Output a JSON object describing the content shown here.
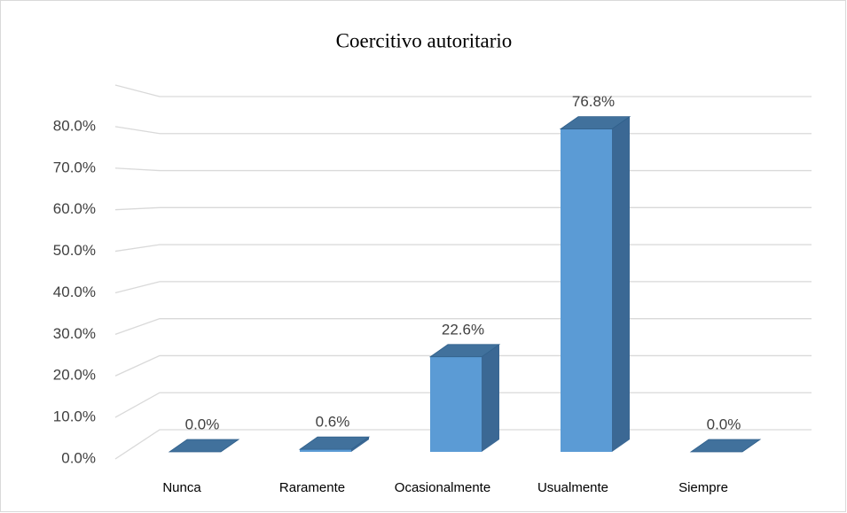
{
  "chart_data": {
    "type": "bar3d",
    "title": "Coercitivo autoritario",
    "categories": [
      "Nunca",
      "Raramente",
      "Ocasionalmente",
      "Usualmente",
      "Siempre"
    ],
    "values": [
      0,
      0.6,
      22.6,
      76.8,
      0
    ],
    "value_labels": [
      "0.0%",
      "0.6%",
      "22.6%",
      "76.8%",
      "0.0%"
    ],
    "color": "#5b9bd5",
    "ylim": [
      0,
      90
    ],
    "yticks": [
      {
        "value": 0,
        "label": "0.0%"
      },
      {
        "value": 10,
        "label": "10.0%"
      },
      {
        "value": 20,
        "label": "20.0%"
      },
      {
        "value": 30,
        "label": "30.0%"
      },
      {
        "value": 40,
        "label": "40.0%"
      },
      {
        "value": 50,
        "label": "50.0%"
      },
      {
        "value": 60,
        "label": "60.0%"
      },
      {
        "value": 70,
        "label": "70.0%"
      },
      {
        "value": 80,
        "label": "80.0%"
      }
    ],
    "grid": true
  }
}
